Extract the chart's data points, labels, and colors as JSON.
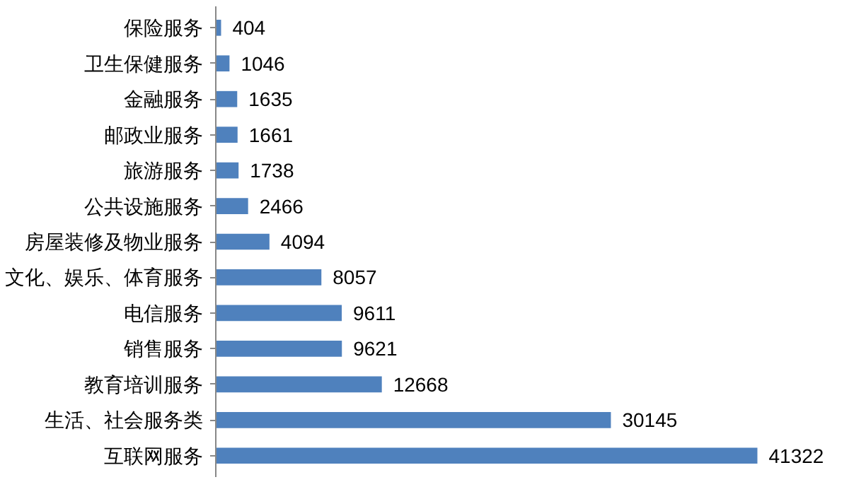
{
  "chart_data": {
    "type": "bar",
    "orientation": "horizontal",
    "data_labels": true,
    "grid": false,
    "categories": [
      "保险服务",
      "卫生保健服务",
      "金融服务",
      "邮政业服务",
      "旅游服务",
      "公共设施服务",
      "房屋装修及物业服务",
      "文化、娱乐、体育服务",
      "电信服务",
      "销售服务",
      "教育培训服务",
      "生活、社会服务类",
      "互联网服务"
    ],
    "values": [
      404,
      1046,
      1635,
      1661,
      1738,
      2466,
      4094,
      8057,
      9611,
      9621,
      12668,
      30145,
      41322
    ],
    "color": "#4f81bd"
  }
}
